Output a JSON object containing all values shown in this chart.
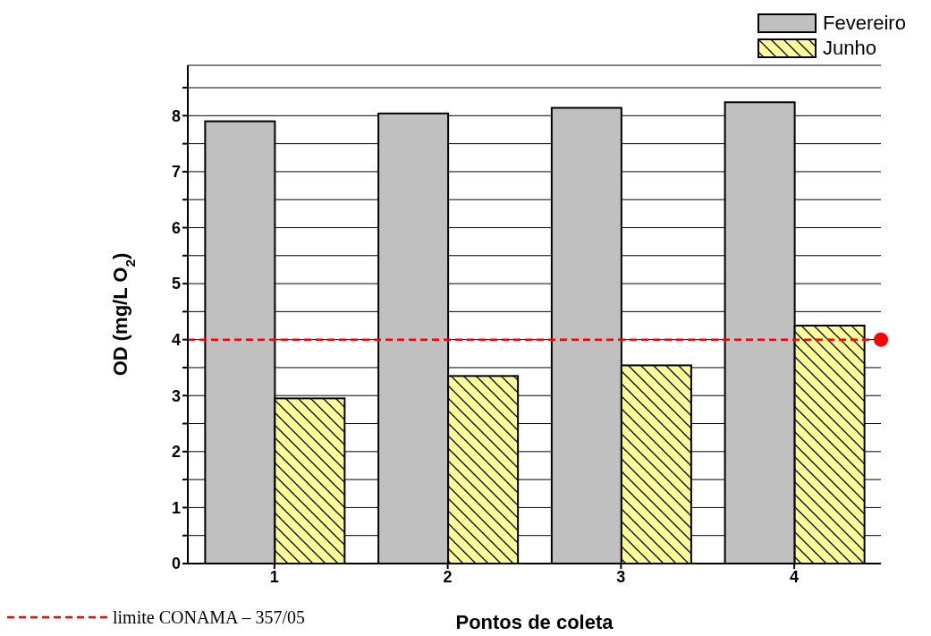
{
  "chart_data": {
    "type": "bar",
    "xlabel": "Pontos de coleta",
    "ylabel": "OD (mg/L O$_{2}$)",
    "categories": [
      "1",
      "2",
      "3",
      "4"
    ],
    "series": [
      {
        "name": "Fevereiro",
        "color": "#c0c0c0",
        "values": [
          7.9,
          8.04,
          8.14,
          8.24
        ]
      },
      {
        "name": "Junho",
        "color": "#ffff99",
        "values": [
          2.95,
          3.35,
          3.54,
          4.25
        ]
      }
    ],
    "ylim": [
      0,
      8.9
    ],
    "yticks": [
      0,
      {
        "value": 0.5,
        "label": null
      },
      1,
      {
        "value": 1.5,
        "label": null
      },
      2,
      {
        "value": 2.5,
        "label": null
      },
      3,
      {
        "value": 3.5,
        "label": null
      },
      4,
      {
        "value": 4.5,
        "label": null
      },
      5,
      {
        "value": 5.5,
        "label": null
      },
      6,
      {
        "value": 6.5,
        "label": null
      },
      7,
      {
        "value": 7.5,
        "label": null
      },
      8,
      {
        "value": 8.5,
        "label": null
      }
    ],
    "grid": "y",
    "legend": "top right",
    "annotations": [
      "limite CONAMA – 357/05"
    ],
    "ref_lines": [
      {
        "axis": "y",
        "value": 4,
        "color": "#ff0000",
        "line_style": "dashed"
      }
    ]
  }
}
